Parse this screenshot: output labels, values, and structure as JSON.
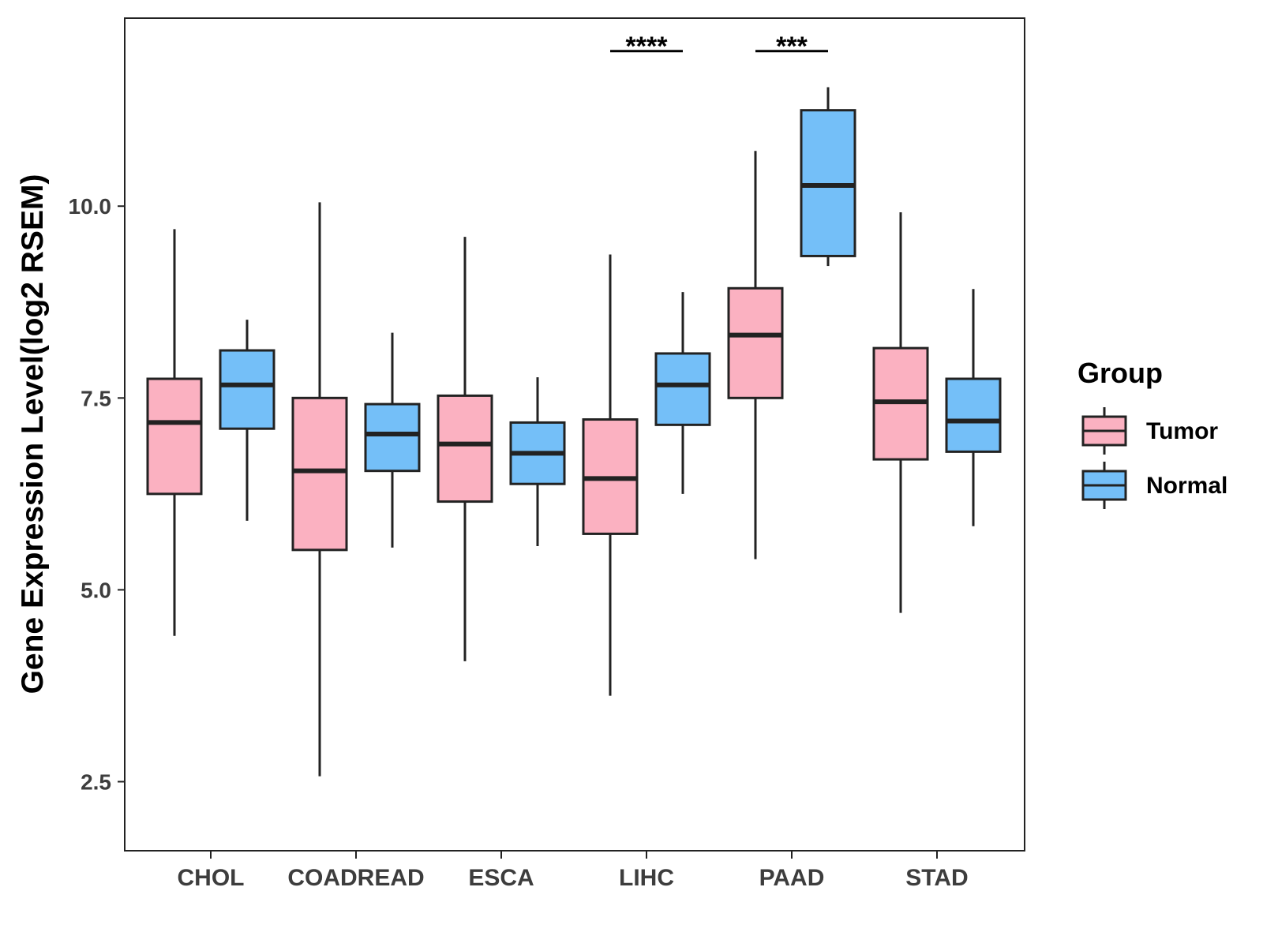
{
  "chart_data": {
    "type": "boxplot",
    "title": "",
    "xlabel": "",
    "ylabel": "Gene Expression Level(log2 RSEM)",
    "ylim": [
      1.6,
      12.45
    ],
    "yticks": [
      2.5,
      5.0,
      7.5,
      10.0
    ],
    "ytick_labels": [
      "2.5",
      "5.0",
      "7.5",
      "10.0"
    ],
    "categories": [
      "CHOL",
      "COADREAD",
      "ESCA",
      "LIHC",
      "PAAD",
      "STAD"
    ],
    "legend": {
      "title": "Group",
      "position": "right",
      "entries": [
        "Tumor",
        "Normal"
      ]
    },
    "colors": {
      "Tumor": "#fbb1c1",
      "Normal": "#74bff8",
      "outline": "#222222"
    },
    "series": [
      {
        "name": "Tumor",
        "boxes": [
          {
            "category": "CHOL",
            "whisker_low": 4.4,
            "q1": 6.25,
            "median": 7.18,
            "q3": 7.75,
            "whisker_high": 9.7
          },
          {
            "category": "COADREAD",
            "whisker_low": 2.57,
            "q1": 5.52,
            "median": 6.55,
            "q3": 7.5,
            "whisker_high": 10.05
          },
          {
            "category": "ESCA",
            "whisker_low": 4.07,
            "q1": 6.15,
            "median": 6.9,
            "q3": 7.53,
            "whisker_high": 9.6
          },
          {
            "category": "LIHC",
            "whisker_low": 3.62,
            "q1": 5.73,
            "median": 6.45,
            "q3": 7.22,
            "whisker_high": 9.37
          },
          {
            "category": "PAAD",
            "whisker_low": 5.4,
            "q1": 7.5,
            "median": 8.32,
            "q3": 8.93,
            "whisker_high": 10.72
          },
          {
            "category": "STAD",
            "whisker_low": 4.7,
            "q1": 6.7,
            "median": 7.45,
            "q3": 8.15,
            "whisker_high": 9.92
          }
        ]
      },
      {
        "name": "Normal",
        "boxes": [
          {
            "category": "CHOL",
            "whisker_low": 5.9,
            "q1": 7.1,
            "median": 7.67,
            "q3": 8.12,
            "whisker_high": 8.52
          },
          {
            "category": "COADREAD",
            "whisker_low": 5.55,
            "q1": 6.55,
            "median": 7.03,
            "q3": 7.42,
            "whisker_high": 8.35
          },
          {
            "category": "ESCA",
            "whisker_low": 5.57,
            "q1": 6.38,
            "median": 6.78,
            "q3": 7.18,
            "whisker_high": 7.77
          },
          {
            "category": "LIHC",
            "whisker_low": 6.25,
            "q1": 7.15,
            "median": 7.67,
            "q3": 8.08,
            "whisker_high": 8.88
          },
          {
            "category": "PAAD",
            "whisker_low": 9.22,
            "q1": 9.35,
            "median": 10.27,
            "q3": 11.25,
            "whisker_high": 11.55
          },
          {
            "category": "STAD",
            "whisker_low": 5.83,
            "q1": 6.8,
            "median": 7.2,
            "q3": 7.75,
            "whisker_high": 8.92
          }
        ]
      }
    ],
    "annotations": [
      {
        "category": "LIHC",
        "label": "****",
        "y": 12.02
      },
      {
        "category": "PAAD",
        "label": "***",
        "y": 12.02
      }
    ]
  }
}
